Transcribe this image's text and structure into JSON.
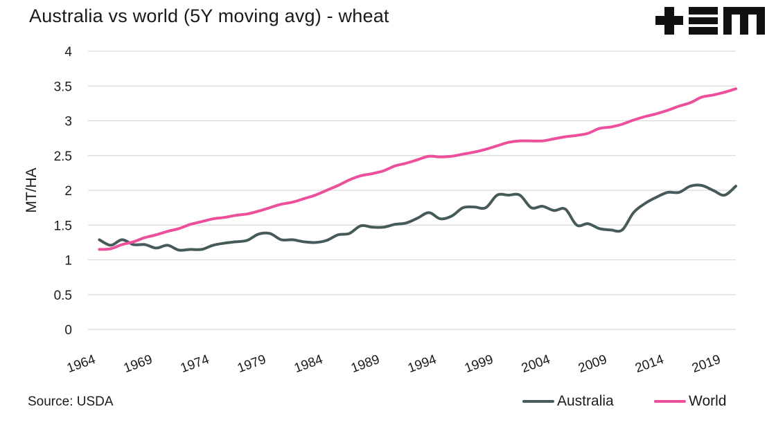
{
  "colors": {
    "australia": "#475a5a",
    "world": "#ec4f9b",
    "grid": "#d9d9d9"
  },
  "logo": {
    "text": "+EM"
  },
  "source": "Source: USDA",
  "chart_data": {
    "type": "line",
    "title": "Australia vs world (5Y moving avg) - wheat",
    "xlabel": "",
    "ylabel": "MT/HA",
    "ylim": [
      0,
      4
    ],
    "yticks": [
      0,
      0.5,
      1,
      1.5,
      2,
      2.5,
      3,
      3.5,
      4
    ],
    "ytick_labels": [
      "0",
      "0.5",
      "1",
      "1.5",
      "2",
      "2.5",
      "3",
      "3.5",
      "4"
    ],
    "xlim": [
      1964,
      2021
    ],
    "xticks": [
      1964,
      1969,
      1974,
      1979,
      1984,
      1989,
      1994,
      1999,
      2004,
      2009,
      2014,
      2019
    ],
    "grid": true,
    "legend_position": "bottom-right",
    "x": [
      1965,
      1966,
      1967,
      1968,
      1969,
      1970,
      1971,
      1972,
      1973,
      1974,
      1975,
      1976,
      1977,
      1978,
      1979,
      1980,
      1981,
      1982,
      1983,
      1984,
      1985,
      1986,
      1987,
      1988,
      1989,
      1990,
      1991,
      1992,
      1993,
      1994,
      1995,
      1996,
      1997,
      1998,
      1999,
      2000,
      2001,
      2002,
      2003,
      2004,
      2005,
      2006,
      2007,
      2008,
      2009,
      2010,
      2011,
      2012,
      2013,
      2014,
      2015,
      2016,
      2017,
      2018,
      2019,
      2020,
      2021
    ],
    "series": [
      {
        "name": "Australia",
        "color": "#475a5a",
        "values": [
          1.29,
          1.21,
          1.29,
          1.22,
          1.22,
          1.17,
          1.21,
          1.14,
          1.15,
          1.15,
          1.21,
          1.24,
          1.26,
          1.28,
          1.37,
          1.38,
          1.29,
          1.29,
          1.26,
          1.25,
          1.28,
          1.36,
          1.38,
          1.49,
          1.47,
          1.47,
          1.51,
          1.53,
          1.6,
          1.68,
          1.59,
          1.63,
          1.75,
          1.76,
          1.75,
          1.93,
          1.93,
          1.93,
          1.75,
          1.77,
          1.71,
          1.73,
          1.5,
          1.52,
          1.45,
          1.43,
          1.43,
          1.68,
          1.81,
          1.9,
          1.97,
          1.97,
          2.06,
          2.07,
          2.0,
          1.93,
          2.06
        ]
      },
      {
        "name": "World",
        "color": "#ec4f9b",
        "values": [
          1.15,
          1.16,
          1.22,
          1.26,
          1.32,
          1.36,
          1.41,
          1.45,
          1.51,
          1.55,
          1.59,
          1.61,
          1.64,
          1.66,
          1.7,
          1.75,
          1.8,
          1.83,
          1.88,
          1.93,
          2.0,
          2.07,
          2.15,
          2.21,
          2.24,
          2.28,
          2.35,
          2.39,
          2.44,
          2.49,
          2.48,
          2.49,
          2.52,
          2.55,
          2.59,
          2.64,
          2.69,
          2.71,
          2.71,
          2.71,
          2.74,
          2.77,
          2.79,
          2.82,
          2.89,
          2.91,
          2.95,
          3.01,
          3.06,
          3.1,
          3.15,
          3.21,
          3.26,
          3.34,
          3.37,
          3.41,
          3.46
        ]
      }
    ]
  }
}
